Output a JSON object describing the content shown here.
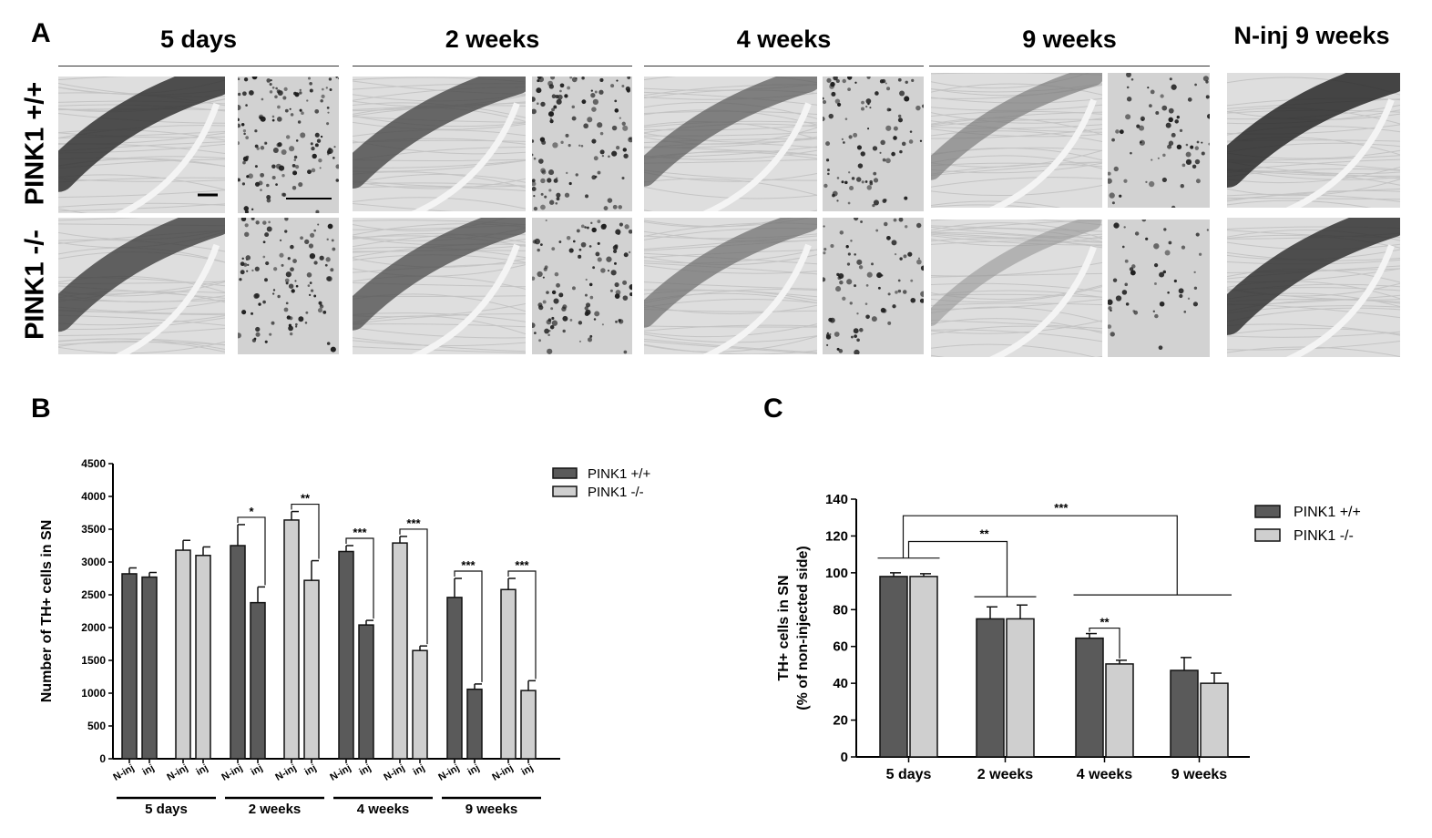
{
  "panels": {
    "a": "A",
    "b": "B",
    "c": "C"
  },
  "panel_a": {
    "columns": [
      "5 days",
      "2 weeks",
      "4 weeks",
      "9 weeks",
      "N-inj 9 weeks"
    ],
    "rows": [
      "PINK1 +/+",
      "PINK1 -/-"
    ]
  },
  "colors": {
    "dark_bar": "#5a5a5a",
    "light_bar": "#cfcfcf"
  },
  "chart_data": [
    {
      "id": "B",
      "type": "bar",
      "ylabel": "Number of TH+ cells in SN",
      "ylim": [
        0,
        4500
      ],
      "yticks": [
        0,
        500,
        1000,
        1500,
        2000,
        2500,
        3000,
        3500,
        4000,
        4500
      ],
      "groups": [
        "5 days",
        "2 weeks",
        "4 weeks",
        "9 weeks"
      ],
      "bar_labels": [
        "N-inj",
        "inj"
      ],
      "legend": [
        "PINK1 +/+",
        "PINK1 -/-"
      ],
      "legend_position": "top-right",
      "bars": [
        {
          "group": "5 days",
          "genotype": "PINK1 +/+",
          "side": "N-inj",
          "value": 2820,
          "error": 90
        },
        {
          "group": "5 days",
          "genotype": "PINK1 +/+",
          "side": "inj",
          "value": 2770,
          "error": 70
        },
        {
          "group": "5 days",
          "genotype": "PINK1 -/-",
          "side": "N-inj",
          "value": 3180,
          "error": 150
        },
        {
          "group": "5 days",
          "genotype": "PINK1 -/-",
          "side": "inj",
          "value": 3100,
          "error": 130
        },
        {
          "group": "2 weeks",
          "genotype": "PINK1 +/+",
          "side": "N-inj",
          "value": 3250,
          "error": 320
        },
        {
          "group": "2 weeks",
          "genotype": "PINK1 +/+",
          "side": "inj",
          "value": 2380,
          "error": 240
        },
        {
          "group": "2 weeks",
          "genotype": "PINK1 -/-",
          "side": "N-inj",
          "value": 3640,
          "error": 130
        },
        {
          "group": "2 weeks",
          "genotype": "PINK1 -/-",
          "side": "inj",
          "value": 2720,
          "error": 300
        },
        {
          "group": "4 weeks",
          "genotype": "PINK1 +/+",
          "side": "N-inj",
          "value": 3160,
          "error": 90
        },
        {
          "group": "4 weeks",
          "genotype": "PINK1 +/+",
          "side": "inj",
          "value": 2040,
          "error": 70
        },
        {
          "group": "4 weeks",
          "genotype": "PINK1 -/-",
          "side": "N-inj",
          "value": 3290,
          "error": 100
        },
        {
          "group": "4 weeks",
          "genotype": "PINK1 -/-",
          "side": "inj",
          "value": 1650,
          "error": 70
        },
        {
          "group": "9 weeks",
          "genotype": "PINK1 +/+",
          "side": "N-inj",
          "value": 2460,
          "error": 290
        },
        {
          "group": "9 weeks",
          "genotype": "PINK1 +/+",
          "side": "inj",
          "value": 1060,
          "error": 80
        },
        {
          "group": "9 weeks",
          "genotype": "PINK1 -/-",
          "side": "N-inj",
          "value": 2580,
          "error": 170
        },
        {
          "group": "9 weeks",
          "genotype": "PINK1 -/-",
          "side": "inj",
          "value": 1040,
          "error": 150
        }
      ],
      "significance": [
        {
          "bars": [
            4,
            5
          ],
          "label": "*"
        },
        {
          "bars": [
            6,
            7
          ],
          "label": "**"
        },
        {
          "bars": [
            8,
            9
          ],
          "label": "***"
        },
        {
          "bars": [
            10,
            11
          ],
          "label": "***"
        },
        {
          "bars": [
            12,
            13
          ],
          "label": "***"
        },
        {
          "bars": [
            14,
            15
          ],
          "label": "***"
        }
      ]
    },
    {
      "id": "C",
      "type": "bar",
      "ylabel": [
        "TH+ cells in SN",
        "(% of non-injected side)"
      ],
      "ylim": [
        0,
        140
      ],
      "yticks": [
        0,
        20,
        40,
        60,
        80,
        100,
        120,
        140
      ],
      "categories": [
        "5 days",
        "2 weeks",
        "4 weeks",
        "9 weeks"
      ],
      "legend_position": "top-right",
      "series": [
        {
          "name": "PINK1 +/+",
          "values": [
            98,
            75,
            64.5,
            47
          ],
          "errors": [
            2,
            6.5,
            2.5,
            7
          ]
        },
        {
          "name": "PINK1 -/-",
          "values": [
            98,
            75,
            50.5,
            40
          ],
          "errors": [
            1.5,
            7.5,
            2,
            5.5
          ]
        }
      ],
      "significance": [
        {
          "from": "5 days",
          "to": "2 weeks",
          "label": "**"
        },
        {
          "from": "5 days",
          "to": "4 weeks + 9 weeks",
          "label": "***"
        },
        {
          "within": "4 weeks",
          "label": "**"
        }
      ]
    }
  ]
}
